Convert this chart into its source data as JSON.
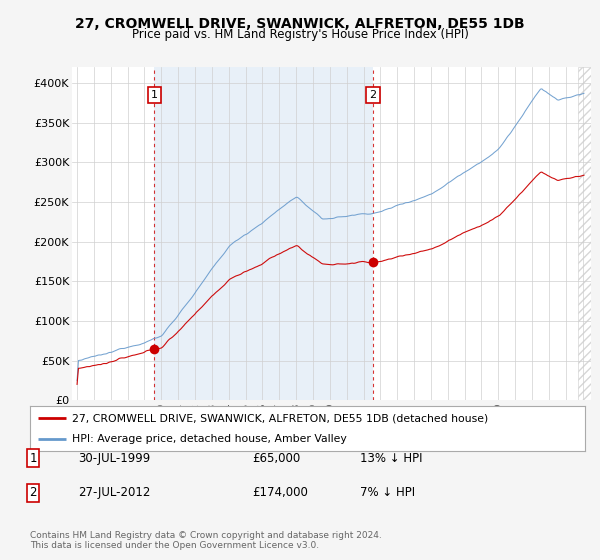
{
  "title": "27, CROMWELL DRIVE, SWANWICK, ALFRETON, DE55 1DB",
  "subtitle": "Price paid vs. HM Land Registry's House Price Index (HPI)",
  "transactions": [
    {
      "label": "1",
      "date": 1999.58,
      "price": 65000,
      "hpi_pct": "13% ↓ HPI",
      "date_str": "30-JUL-1999"
    },
    {
      "label": "2",
      "date": 2012.57,
      "price": 174000,
      "hpi_pct": "7% ↓ HPI",
      "date_str": "27-JUL-2012"
    }
  ],
  "legend_label_red": "27, CROMWELL DRIVE, SWANWICK, ALFRETON, DE55 1DB (detached house)",
  "legend_label_blue": "HPI: Average price, detached house, Amber Valley",
  "footer": "Contains HM Land Registry data © Crown copyright and database right 2024.\nThis data is licensed under the Open Government Licence v3.0.",
  "color_red": "#cc0000",
  "color_blue": "#6699cc",
  "ylim_min": 0,
  "ylim_max": 420000,
  "yticks": [
    0,
    50000,
    100000,
    150000,
    200000,
    250000,
    300000,
    350000,
    400000
  ],
  "ytick_labels": [
    "£0",
    "£50K",
    "£100K",
    "£150K",
    "£200K",
    "£250K",
    "£300K",
    "£350K",
    "£400K"
  ],
  "xlim_start": 1994.7,
  "xlim_end": 2025.5,
  "background_color": "#f5f5f5",
  "plot_bg": "#ffffff",
  "highlight_bg": "#e8f0f8",
  "hatch_start": 2024.75,
  "hatch_color": "#cccccc"
}
